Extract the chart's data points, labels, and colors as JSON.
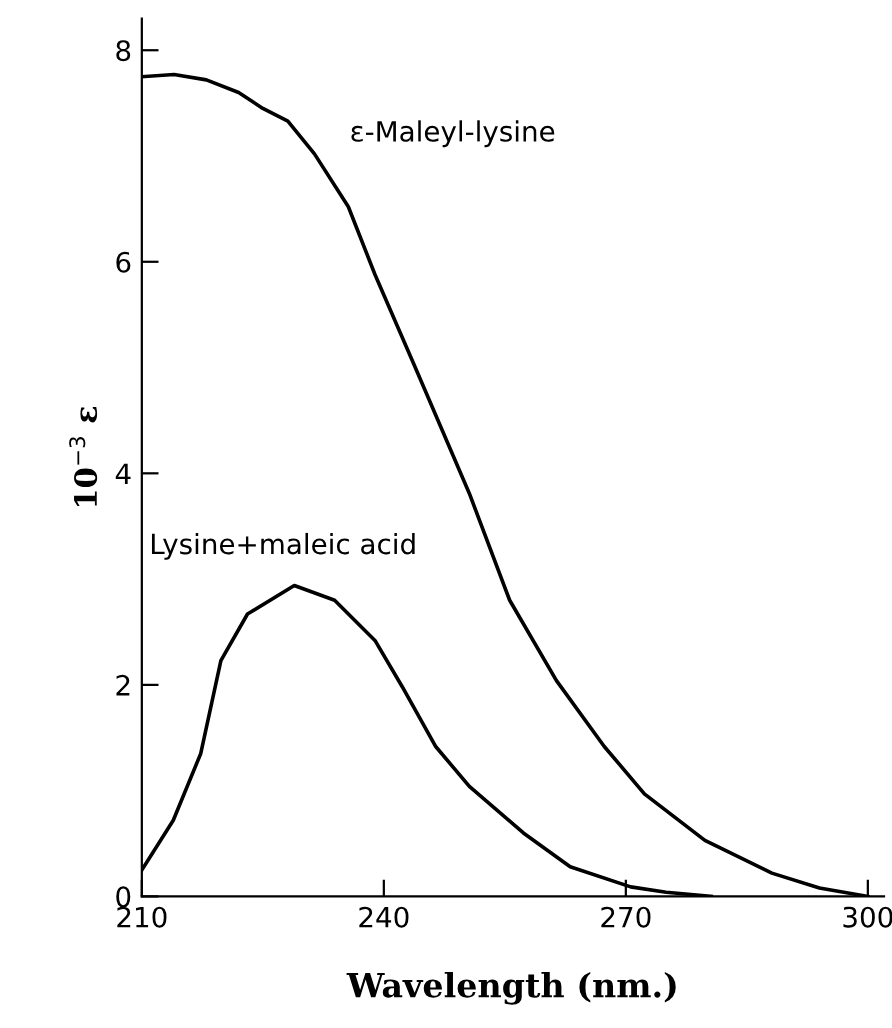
{
  "chart_data": {
    "type": "line",
    "xlabel": "Wavelength (nm.)",
    "ylabel": "10$^{−3}$ ε",
    "xlim": [
      210,
      302
    ],
    "ylim": [
      0,
      8.3
    ],
    "xticks": [
      210,
      240,
      270,
      300
    ],
    "yticks": [
      0,
      2,
      4,
      6,
      8
    ],
    "grid": false,
    "legend": false,
    "marker": "none",
    "line_style": "solid",
    "series": [
      {
        "name": "ε-Maleyl-lysine",
        "color": "#000000",
        "x": [
          210,
          214,
          218,
          222,
          225,
          228.1,
          231.4,
          235.6,
          238.9,
          243.9,
          250.6,
          255.6,
          261.4,
          267.3,
          272.3,
          279.8,
          288.1,
          294,
          300
        ],
        "values": [
          7.75,
          7.77,
          7.72,
          7.6,
          7.45,
          7.33,
          7.02,
          6.52,
          5.88,
          5.0,
          3.81,
          2.8,
          2.04,
          1.42,
          0.97,
          0.53,
          0.22,
          0.08,
          0.0
        ]
      },
      {
        "name": "Lysine+maleic acid",
        "color": "#000000",
        "x": [
          210,
          213.9,
          217.3,
          219.8,
          223.1,
          228.9,
          233.9,
          238.9,
          242.3,
          246.4,
          250.6,
          257.3,
          263.1,
          270.6,
          275,
          280.6
        ],
        "values": [
          0.25,
          0.72,
          1.35,
          2.23,
          2.67,
          2.94,
          2.8,
          2.42,
          1.98,
          1.42,
          1.04,
          0.6,
          0.28,
          0.09,
          0.04,
          0.0
        ]
      }
    ]
  }
}
